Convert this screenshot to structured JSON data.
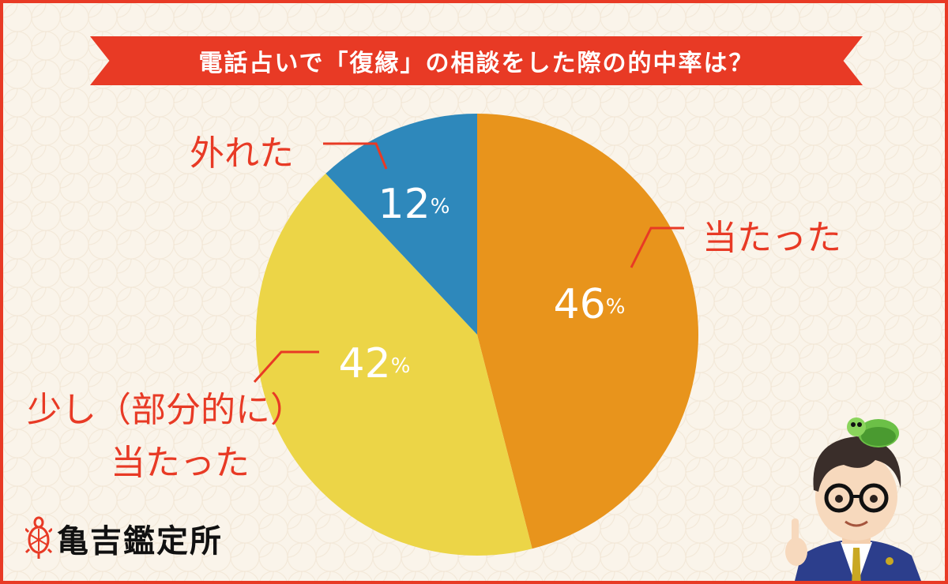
{
  "title": "電話占いで「復縁」の相談をした際の的中率は？",
  "logo": {
    "icon": "turtle-icon",
    "text": "亀吉鑑定所"
  },
  "mascot": {
    "icon": "fortune-teller-with-turtle-illustration"
  },
  "colors": {
    "frame": "#e83a25",
    "label": "#e83a25",
    "background": "#faf4ea"
  },
  "chart_data": {
    "type": "pie",
    "start": "12 o'clock",
    "direction": "clockwise",
    "legend": "none",
    "slices": [
      {
        "label": "当たった",
        "value": 46,
        "display": "46",
        "unit": "%",
        "color": "#e8941c"
      },
      {
        "label": "少し（部分的に）当たった",
        "lines": [
          "少し（部分的に）",
          "当たった"
        ],
        "value": 42,
        "display": "42",
        "unit": "%",
        "color": "#ecd547"
      },
      {
        "label": "外れた",
        "value": 12,
        "display": "12",
        "unit": "%",
        "color": "#2e88bb"
      }
    ]
  }
}
